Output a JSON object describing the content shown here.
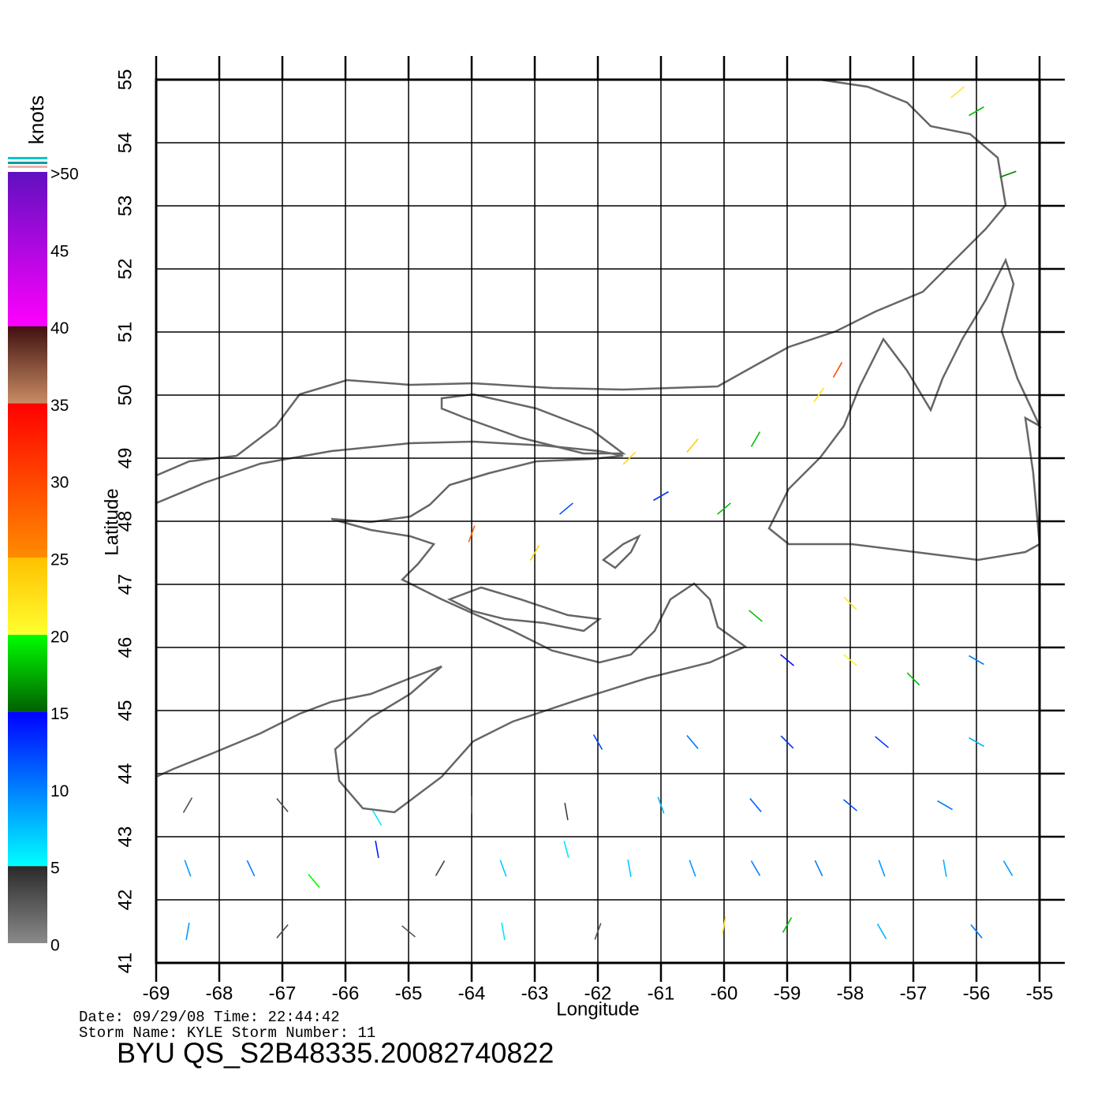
{
  "map": {
    "type": "wind-vectors",
    "x_label": "Longitude",
    "y_label": "Latitude",
    "xlim": [
      -69,
      -55
    ],
    "ylim": [
      41,
      55
    ],
    "xticks": [
      -69,
      -68,
      -67,
      -66,
      -65,
      -64,
      -63,
      -62,
      -61,
      -60,
      -59,
      -58,
      -57,
      -56,
      -55
    ],
    "yticks": [
      41,
      42,
      43,
      44,
      45,
      46,
      47,
      48,
      49,
      50,
      51,
      52,
      53,
      54,
      55
    ],
    "grid": true,
    "colorbar": {
      "title": "knots",
      "range": [
        0,
        50
      ],
      "ticks": [
        0,
        5,
        10,
        15,
        20,
        25,
        30,
        35,
        40,
        45,
        {
          "value": 50,
          "label": ">50"
        }
      ],
      "segments": [
        {
          "from": 0,
          "to": 5,
          "colors": [
            "#8a8a8a",
            "#2a2a2a"
          ]
        },
        {
          "from": 5,
          "to": 15,
          "colors": [
            "#00ffff",
            "#0000ff"
          ]
        },
        {
          "from": 15,
          "to": 20,
          "colors": [
            "#006000",
            "#00ff00"
          ]
        },
        {
          "from": 20,
          "to": 25,
          "colors": [
            "#ffff30",
            "#ffc000"
          ]
        },
        {
          "from": 25,
          "to": 35,
          "colors": [
            "#ff8c00",
            "#ff0000"
          ]
        },
        {
          "from": 35,
          "to": 40,
          "colors": [
            "#c88c64",
            "#401010"
          ]
        },
        {
          "from": 40,
          "to": 50,
          "colors": [
            "#ff00ff",
            "#6010c0"
          ]
        }
      ]
    },
    "wind": {
      "lon": [
        -68.5,
        -67.5,
        -66.5,
        -65.5,
        -64.5,
        -63.5,
        -62.5,
        -61.5,
        -60.5,
        -59.5,
        -58.5,
        -57.5,
        -56.5,
        -55.5,
        -68.5,
        -67,
        -65,
        -63.5,
        -62,
        -60,
        -59,
        -57.5,
        -56,
        -68.5,
        -67,
        -65.5,
        -64,
        -62.5,
        -61,
        -59.5,
        -58,
        -56.5,
        -62,
        -60.5,
        -59,
        -57.5,
        -56,
        -59,
        -58,
        -57,
        -56,
        -59.5,
        -58,
        -64,
        -63,
        -62.5,
        -61,
        -60,
        -61.5,
        -60.5,
        -59.5,
        -58.5,
        -58.2,
        -56,
        -55.5,
        -56.3
      ],
      "lat": [
        42.5,
        42.5,
        42.3,
        42.8,
        42.5,
        42.5,
        42.8,
        42.5,
        42.5,
        42.5,
        42.5,
        42.5,
        42.5,
        42.5,
        41.5,
        41.5,
        41.5,
        41.5,
        41.5,
        41.6,
        41.6,
        41.5,
        41.5,
        43.5,
        43.5,
        43.3,
        43.5,
        43.4,
        43.5,
        43.5,
        43.5,
        43.5,
        44.5,
        44.5,
        44.5,
        44.5,
        44.5,
        45.8,
        45.8,
        45.5,
        45.8,
        46.5,
        46.7,
        47.8,
        47.5,
        48.2,
        48.4,
        48.2,
        49,
        49.2,
        49.3,
        50,
        50.4,
        54.5,
        53.5,
        54.8
      ],
      "speed": [
        9,
        10,
        20,
        14,
        4,
        7,
        6,
        7,
        9,
        10,
        10,
        9,
        8,
        9,
        9,
        3,
        3,
        6,
        3,
        22,
        18,
        8,
        10,
        3,
        3,
        6,
        3,
        4,
        8,
        11,
        12,
        10,
        12,
        10,
        13,
        13,
        8,
        15,
        21,
        18,
        10,
        18,
        22,
        28,
        24,
        12,
        13,
        18,
        23,
        24,
        18,
        22,
        30,
        18,
        16,
        22
      ],
      "direction": [
        110,
        115,
        130,
        100,
        60,
        110,
        105,
        100,
        110,
        120,
        115,
        110,
        100,
        120,
        80,
        50,
        140,
        100,
        70,
        80,
        60,
        120,
        130,
        60,
        130,
        120,
        90,
        100,
        110,
        130,
        140,
        150,
        120,
        130,
        135,
        140,
        150,
        140,
        140,
        135,
        150,
        140,
        135,
        70,
        60,
        40,
        30,
        40,
        45,
        50,
        60,
        55,
        60,
        30,
        20,
        40
      ]
    },
    "footer": {
      "line1": "Date: 09/29/08   Time: 22:44:42",
      "line2": "Storm Name: KYLE   Storm Number: 11",
      "product": "BYU  QS_S2B48335.20082740822"
    }
  }
}
